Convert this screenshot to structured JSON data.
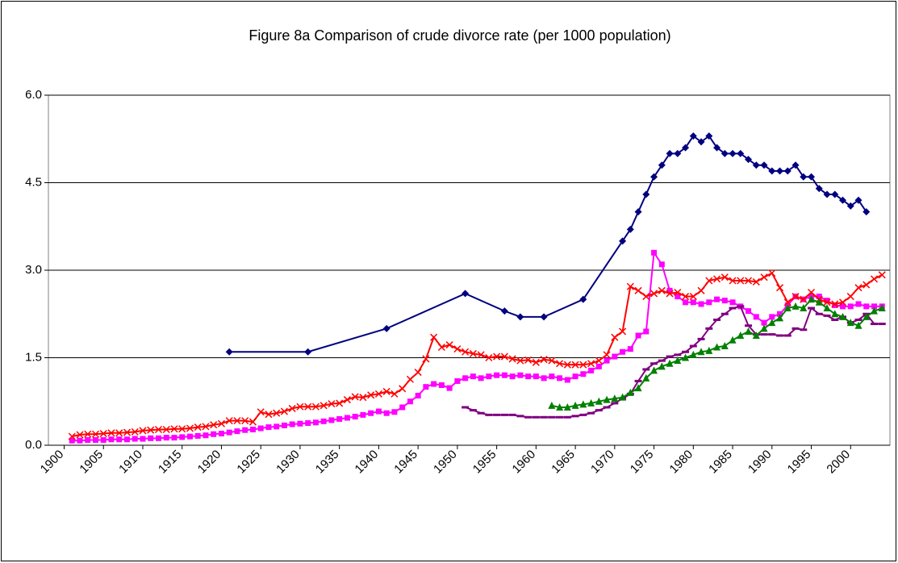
{
  "chart_data": {
    "type": "line",
    "title": "Figure 8a Comparison of crude divorce rate (per 1000 population)",
    "xlim": [
      1898,
      2005
    ],
    "xticks": [
      1900,
      1905,
      1910,
      1915,
      1920,
      1925,
      1930,
      1935,
      1940,
      1945,
      1950,
      1955,
      1960,
      1965,
      1970,
      1975,
      1980,
      1985,
      1990,
      1995,
      2000
    ],
    "ylim": [
      0,
      6
    ],
    "yticks": [
      {
        "value": 0,
        "label": "0.0"
      },
      1.5,
      {
        "value": 3,
        "label": "3.0"
      },
      4.5,
      {
        "value": 6,
        "label": "6.0"
      }
    ],
    "grid": true,
    "series": [
      {
        "color": "#000080",
        "marker": "diamond",
        "x": [
          1921,
          1931,
          1941,
          1951,
          1956,
          1958,
          1961,
          1966,
          1971,
          1972,
          1973,
          1974,
          1975,
          1976,
          1977,
          1978,
          1979,
          1980,
          1981,
          1982,
          1983,
          1984,
          1985,
          1986,
          1987,
          1988,
          1989,
          1990,
          1991,
          1992,
          1993,
          1994,
          1995,
          1996,
          1997,
          1998,
          1999,
          2000,
          2001,
          2002
        ],
        "values": [
          1.6,
          1.6,
          2.0,
          2.6,
          2.3,
          2.2,
          2.2,
          2.5,
          3.5,
          3.7,
          4.0,
          4.3,
          4.6,
          4.8,
          5.0,
          5.0,
          5.1,
          5.3,
          5.2,
          5.3,
          5.1,
          5.0,
          5.0,
          5.0,
          4.9,
          4.8,
          4.8,
          4.7,
          4.7,
          4.7,
          4.8,
          4.6,
          4.6,
          4.4,
          4.3,
          4.3,
          4.2,
          4.1,
          4.2,
          4.0
        ]
      },
      {
        "color": "#FF00FF",
        "marker": "square",
        "x": [
          1901,
          1902,
          1903,
          1904,
          1905,
          1906,
          1907,
          1908,
          1909,
          1910,
          1911,
          1912,
          1913,
          1914,
          1915,
          1916,
          1917,
          1918,
          1919,
          1920,
          1921,
          1922,
          1923,
          1924,
          1925,
          1926,
          1927,
          1928,
          1929,
          1930,
          1931,
          1932,
          1933,
          1934,
          1935,
          1936,
          1937,
          1938,
          1939,
          1940,
          1941,
          1942,
          1943,
          1944,
          1945,
          1946,
          1947,
          1948,
          1949,
          1950,
          1951,
          1952,
          1953,
          1954,
          1955,
          1956,
          1957,
          1958,
          1959,
          1960,
          1961,
          1962,
          1963,
          1964,
          1965,
          1966,
          1967,
          1968,
          1969,
          1970,
          1971,
          1972,
          1973,
          1974,
          1975,
          1976,
          1977,
          1978,
          1979,
          1980,
          1981,
          1982,
          1983,
          1984,
          1985,
          1986,
          1987,
          1988,
          1989,
          1990,
          1991,
          1992,
          1993,
          1994,
          1995,
          1996,
          1997,
          1998,
          1999,
          2000,
          2001,
          2002,
          2003,
          2004
        ],
        "values": [
          0.08,
          0.08,
          0.09,
          0.09,
          0.09,
          0.1,
          0.1,
          0.1,
          0.11,
          0.11,
          0.12,
          0.12,
          0.13,
          0.13,
          0.14,
          0.15,
          0.16,
          0.17,
          0.19,
          0.2,
          0.22,
          0.24,
          0.26,
          0.27,
          0.29,
          0.31,
          0.32,
          0.34,
          0.36,
          0.37,
          0.38,
          0.39,
          0.41,
          0.43,
          0.45,
          0.47,
          0.49,
          0.52,
          0.55,
          0.58,
          0.55,
          0.57,
          0.65,
          0.75,
          0.85,
          1.0,
          1.05,
          1.03,
          0.98,
          1.1,
          1.15,
          1.18,
          1.15,
          1.18,
          1.2,
          1.2,
          1.18,
          1.2,
          1.18,
          1.18,
          1.15,
          1.18,
          1.15,
          1.12,
          1.18,
          1.22,
          1.28,
          1.35,
          1.45,
          1.52,
          1.6,
          1.65,
          1.88,
          1.95,
          3.3,
          3.1,
          2.65,
          2.55,
          2.45,
          2.45,
          2.42,
          2.45,
          2.5,
          2.48,
          2.45,
          2.38,
          2.3,
          2.2,
          2.1,
          2.2,
          2.25,
          2.4,
          2.55,
          2.5,
          2.55,
          2.55,
          2.48,
          2.4,
          2.38,
          2.38,
          2.42,
          2.38,
          2.38,
          2.38
        ]
      },
      {
        "color": "#FF0000",
        "marker": "x",
        "x": [
          1901,
          1902,
          1903,
          1904,
          1905,
          1906,
          1907,
          1908,
          1909,
          1910,
          1911,
          1912,
          1913,
          1914,
          1915,
          1916,
          1917,
          1918,
          1919,
          1920,
          1921,
          1922,
          1923,
          1924,
          1925,
          1926,
          1927,
          1928,
          1929,
          1930,
          1931,
          1932,
          1933,
          1934,
          1935,
          1936,
          1937,
          1938,
          1939,
          1940,
          1941,
          1942,
          1943,
          1944,
          1945,
          1946,
          1947,
          1948,
          1949,
          1950,
          1951,
          1952,
          1953,
          1954,
          1955,
          1956,
          1957,
          1958,
          1959,
          1960,
          1961,
          1962,
          1963,
          1964,
          1965,
          1966,
          1967,
          1968,
          1969,
          1970,
          1971,
          1972,
          1973,
          1974,
          1975,
          1976,
          1977,
          1978,
          1979,
          1980,
          1981,
          1982,
          1983,
          1984,
          1985,
          1986,
          1987,
          1988,
          1989,
          1990,
          1991,
          1992,
          1993,
          1994,
          1995,
          1996,
          1997,
          1998,
          1999,
          2000,
          2001,
          2002,
          2003,
          2004
        ],
        "values": [
          0.15,
          0.18,
          0.19,
          0.19,
          0.2,
          0.21,
          0.21,
          0.22,
          0.23,
          0.25,
          0.26,
          0.27,
          0.27,
          0.28,
          0.28,
          0.29,
          0.31,
          0.32,
          0.35,
          0.37,
          0.42,
          0.42,
          0.42,
          0.4,
          0.57,
          0.53,
          0.55,
          0.58,
          0.63,
          0.66,
          0.66,
          0.66,
          0.68,
          0.71,
          0.72,
          0.78,
          0.83,
          0.82,
          0.86,
          0.88,
          0.92,
          0.88,
          0.97,
          1.13,
          1.25,
          1.48,
          1.85,
          1.68,
          1.72,
          1.65,
          1.6,
          1.57,
          1.55,
          1.5,
          1.52,
          1.52,
          1.48,
          1.45,
          1.46,
          1.42,
          1.47,
          1.45,
          1.4,
          1.38,
          1.38,
          1.38,
          1.4,
          1.45,
          1.55,
          1.85,
          1.95,
          2.72,
          2.65,
          2.55,
          2.6,
          2.65,
          2.6,
          2.62,
          2.55,
          2.55,
          2.65,
          2.82,
          2.85,
          2.88,
          2.82,
          2.82,
          2.82,
          2.8,
          2.88,
          2.95,
          2.7,
          2.45,
          2.55,
          2.5,
          2.62,
          2.5,
          2.45,
          2.42,
          2.45,
          2.55,
          2.7,
          2.75,
          2.85,
          2.92
        ]
      },
      {
        "color": "#800080",
        "marker": "dash",
        "x": [
          1951,
          1952,
          1953,
          1954,
          1955,
          1956,
          1957,
          1958,
          1959,
          1960,
          1961,
          1962,
          1963,
          1964,
          1965,
          1966,
          1967,
          1968,
          1969,
          1970,
          1971,
          1972,
          1973,
          1974,
          1975,
          1976,
          1977,
          1978,
          1979,
          1980,
          1981,
          1982,
          1983,
          1984,
          1985,
          1986,
          1987,
          1988,
          1989,
          1990,
          1991,
          1992,
          1993,
          1994,
          1995,
          1996,
          1997,
          1998,
          1999,
          2000,
          2001,
          2002,
          2003,
          2004
        ],
        "values": [
          0.65,
          0.6,
          0.55,
          0.52,
          0.52,
          0.52,
          0.52,
          0.5,
          0.48,
          0.48,
          0.48,
          0.48,
          0.48,
          0.48,
          0.5,
          0.52,
          0.55,
          0.6,
          0.65,
          0.72,
          0.8,
          0.88,
          1.1,
          1.3,
          1.4,
          1.45,
          1.52,
          1.55,
          1.6,
          1.7,
          1.82,
          2.0,
          2.15,
          2.25,
          2.35,
          2.38,
          2.05,
          1.9,
          1.9,
          1.9,
          1.88,
          1.88,
          2.0,
          1.98,
          2.35,
          2.25,
          2.22,
          2.15,
          2.2,
          2.1,
          2.15,
          2.25,
          2.08,
          2.08
        ]
      },
      {
        "color": "#008000",
        "marker": "triangle",
        "x": [
          1962,
          1963,
          1964,
          1965,
          1966,
          1967,
          1968,
          1969,
          1970,
          1971,
          1972,
          1973,
          1974,
          1975,
          1976,
          1977,
          1978,
          1979,
          1980,
          1981,
          1982,
          1983,
          1984,
          1985,
          1986,
          1987,
          1988,
          1989,
          1990,
          1991,
          1992,
          1993,
          1994,
          1995,
          1996,
          1997,
          1998,
          1999,
          2000,
          2001,
          2002,
          2003,
          2004
        ],
        "values": [
          0.68,
          0.65,
          0.65,
          0.68,
          0.7,
          0.72,
          0.75,
          0.78,
          0.8,
          0.82,
          0.9,
          0.98,
          1.15,
          1.28,
          1.35,
          1.4,
          1.45,
          1.5,
          1.55,
          1.6,
          1.62,
          1.68,
          1.7,
          1.8,
          1.88,
          1.95,
          1.88,
          2.0,
          2.1,
          2.18,
          2.35,
          2.38,
          2.35,
          2.5,
          2.45,
          2.35,
          2.25,
          2.2,
          2.1,
          2.05,
          2.2,
          2.3,
          2.35
        ]
      }
    ]
  }
}
